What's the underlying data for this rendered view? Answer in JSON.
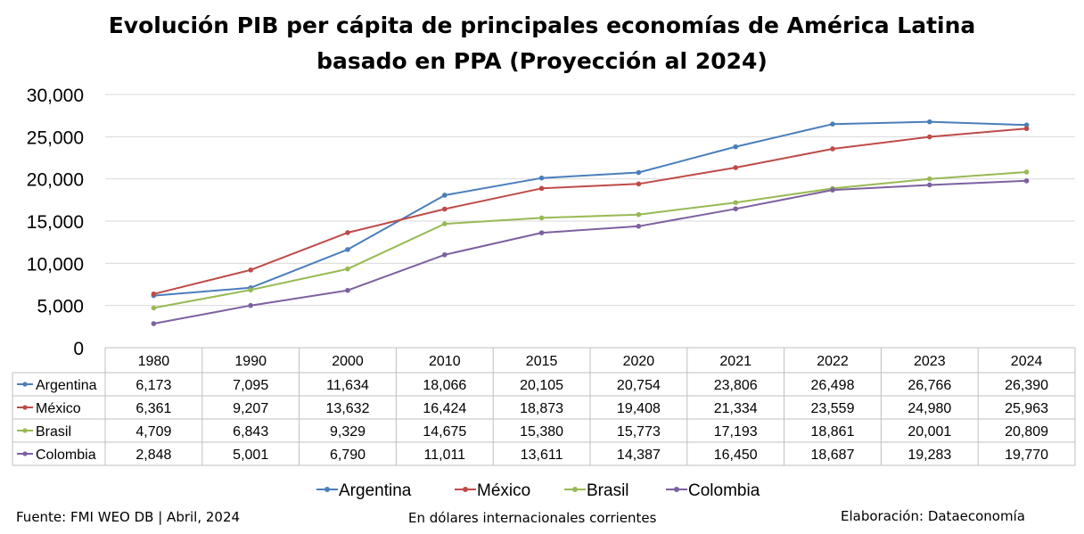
{
  "chart_data": {
    "type": "line",
    "title": [
      "Evolución PIB per cápita de principales economías de América Latina",
      "basado en PPA (Proyección al 2024)"
    ],
    "x": [
      "1980",
      "1990",
      "2000",
      "2010",
      "2015",
      "2020",
      "2021",
      "2022",
      "2023",
      "2024"
    ],
    "ylim": [
      0,
      30000
    ],
    "yticks": [
      "0",
      "5,000",
      "10,000",
      "15,000",
      "20,000",
      "25,000",
      "30,000"
    ],
    "ytick_values": [
      0,
      5000,
      10000,
      15000,
      20000,
      25000,
      30000
    ],
    "grid": true,
    "legend_position": "bottom",
    "data_table": true,
    "series": [
      {
        "name": "Argentina",
        "color": "#4a7ebb",
        "values": [
          6173,
          7095,
          11634,
          18066,
          20105,
          20754,
          23806,
          26498,
          26766,
          26390
        ],
        "labels": [
          "6,173",
          "7,095",
          "11,634",
          "18,066",
          "20,105",
          "20,754",
          "23,806",
          "26,498",
          "26,766",
          "26,390"
        ]
      },
      {
        "name": "México",
        "color": "#be4b48",
        "values": [
          6361,
          9207,
          13632,
          16424,
          18873,
          19408,
          21334,
          23559,
          24980,
          25963
        ],
        "labels": [
          "6,361",
          "9,207",
          "13,632",
          "16,424",
          "18,873",
          "19,408",
          "21,334",
          "23,559",
          "24,980",
          "25,963"
        ]
      },
      {
        "name": "Brasil",
        "color": "#98b954",
        "values": [
          4709,
          6843,
          9329,
          14675,
          15380,
          15773,
          17193,
          18861,
          20001,
          20809
        ],
        "labels": [
          "4,709",
          "6,843",
          "9,329",
          "14,675",
          "15,380",
          "15,773",
          "17,193",
          "18,861",
          "20,001",
          "20,809"
        ]
      },
      {
        "name": "Colombia",
        "color": "#7d60a0",
        "values": [
          2848,
          5001,
          6790,
          11011,
          13611,
          14387,
          16450,
          18687,
          19283,
          19770
        ],
        "labels": [
          "2,848",
          "5,001",
          "6,790",
          "11,011",
          "13,611",
          "14,387",
          "16,450",
          "18,687",
          "19,283",
          "19,770"
        ]
      }
    ]
  },
  "footer": {
    "source": "Fuente: FMI WEO DB | Abril, 2024",
    "units": "En dólares internacionales corrientes",
    "credit": "Elaboración: Dataeconomía"
  }
}
